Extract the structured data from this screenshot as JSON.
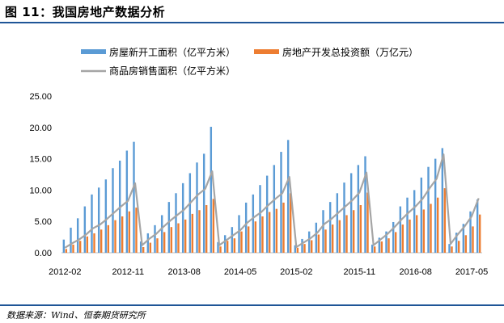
{
  "header": {
    "title": "图 11：我国房地产数据分析"
  },
  "footer": {
    "source": "数据来源：Wind、恒泰期货研究所"
  },
  "colors": {
    "rule": "#1f5597",
    "area": "#5b9bd5",
    "investment": "#ed7d31",
    "sales": "#a5a5a5"
  },
  "chart_data": {
    "type": "bar",
    "ylim": [
      0,
      25
    ],
    "yticks": [
      "0.00",
      "5.00",
      "10.00",
      "15.00",
      "20.00",
      "25.00"
    ],
    "xtick_labels": [
      "2012-02",
      "2012-11",
      "2013-08",
      "2014-05",
      "2015-02",
      "2015-11",
      "2016-08",
      "2017-05"
    ],
    "x": [
      "2012-02",
      "2012-03",
      "2012-04",
      "2012-05",
      "2012-06",
      "2012-07",
      "2012-08",
      "2012-09",
      "2012-10",
      "2012-11",
      "2012-12",
      "2013-02",
      "2013-03",
      "2013-04",
      "2013-05",
      "2013-06",
      "2013-07",
      "2013-08",
      "2013-09",
      "2013-10",
      "2013-11",
      "2013-12",
      "2014-02",
      "2014-03",
      "2014-04",
      "2014-05",
      "2014-06",
      "2014-07",
      "2014-08",
      "2014-09",
      "2014-10",
      "2014-11",
      "2014-12",
      "2015-02",
      "2015-03",
      "2015-04",
      "2015-05",
      "2015-06",
      "2015-07",
      "2015-08",
      "2015-09",
      "2015-10",
      "2015-11",
      "2015-12",
      "2016-02",
      "2016-03",
      "2016-04",
      "2016-05",
      "2016-06",
      "2016-07",
      "2016-08",
      "2016-09",
      "2016-10",
      "2016-11",
      "2016-12",
      "2017-02",
      "2017-03",
      "2017-04",
      "2017-05",
      "2017-06"
    ],
    "legend": {
      "placement": "top"
    },
    "series": [
      {
        "name": "房屋新开工面积（亿平方米）",
        "kind": "bar",
        "values": [
          2.1,
          4.0,
          5.5,
          7.4,
          9.3,
          10.4,
          11.7,
          13.5,
          14.7,
          16.3,
          17.7,
          1.8,
          3.1,
          4.4,
          6.0,
          8.1,
          9.5,
          11.1,
          12.7,
          14.4,
          15.8,
          20.1,
          1.7,
          2.8,
          4.1,
          6.0,
          8.0,
          9.3,
          10.8,
          12.3,
          14.0,
          16.1,
          18.0,
          1.2,
          2.2,
          3.4,
          4.8,
          6.8,
          8.1,
          9.5,
          11.2,
          12.7,
          14.0,
          15.4,
          1.3,
          2.4,
          3.4,
          4.9,
          7.4,
          8.8,
          10.0,
          12.0,
          13.7,
          15.0,
          16.7,
          1.4,
          3.2,
          4.6,
          6.6,
          8.5
        ]
      },
      {
        "name": "房地产开发总投资额（万亿元）",
        "kind": "bar",
        "values": [
          0.6,
          1.3,
          1.9,
          2.6,
          3.1,
          3.7,
          4.4,
          5.2,
          5.8,
          6.6,
          7.2,
          0.9,
          1.6,
          2.3,
          3.3,
          4.1,
          4.7,
          5.3,
          6.2,
          6.8,
          7.6,
          8.6,
          1.0,
          1.9,
          2.3,
          3.4,
          4.2,
          5.0,
          5.8,
          6.5,
          7.0,
          8.0,
          9.5,
          0.8,
          1.4,
          2.0,
          2.9,
          3.7,
          4.5,
          5.2,
          6.0,
          6.8,
          7.6,
          9.6,
          1.0,
          1.8,
          2.3,
          3.3,
          4.5,
          5.3,
          6.0,
          6.9,
          7.8,
          8.8,
          10.3,
          1.0,
          1.9,
          2.8,
          4.2,
          6.1
        ]
      },
      {
        "name": "商品房销售面积（亿平方米）",
        "kind": "line",
        "values": [
          0.8,
          1.5,
          2.1,
          2.9,
          3.9,
          4.5,
          5.4,
          6.4,
          7.4,
          8.3,
          11.1,
          1.2,
          2.2,
          3.0,
          4.1,
          5.1,
          6.0,
          6.9,
          8.1,
          9.3,
          10.2,
          13.0,
          1.2,
          2.0,
          2.8,
          3.6,
          4.8,
          5.7,
          6.5,
          7.6,
          8.6,
          9.5,
          12.1,
          0.9,
          1.6,
          2.3,
          3.2,
          4.6,
          5.4,
          6.4,
          7.4,
          8.4,
          9.6,
          12.8,
          1.2,
          2.1,
          3.0,
          4.1,
          5.3,
          6.4,
          7.4,
          8.6,
          10.3,
          11.8,
          15.7,
          1.4,
          2.9,
          4.2,
          5.8,
          8.7
        ]
      }
    ]
  }
}
